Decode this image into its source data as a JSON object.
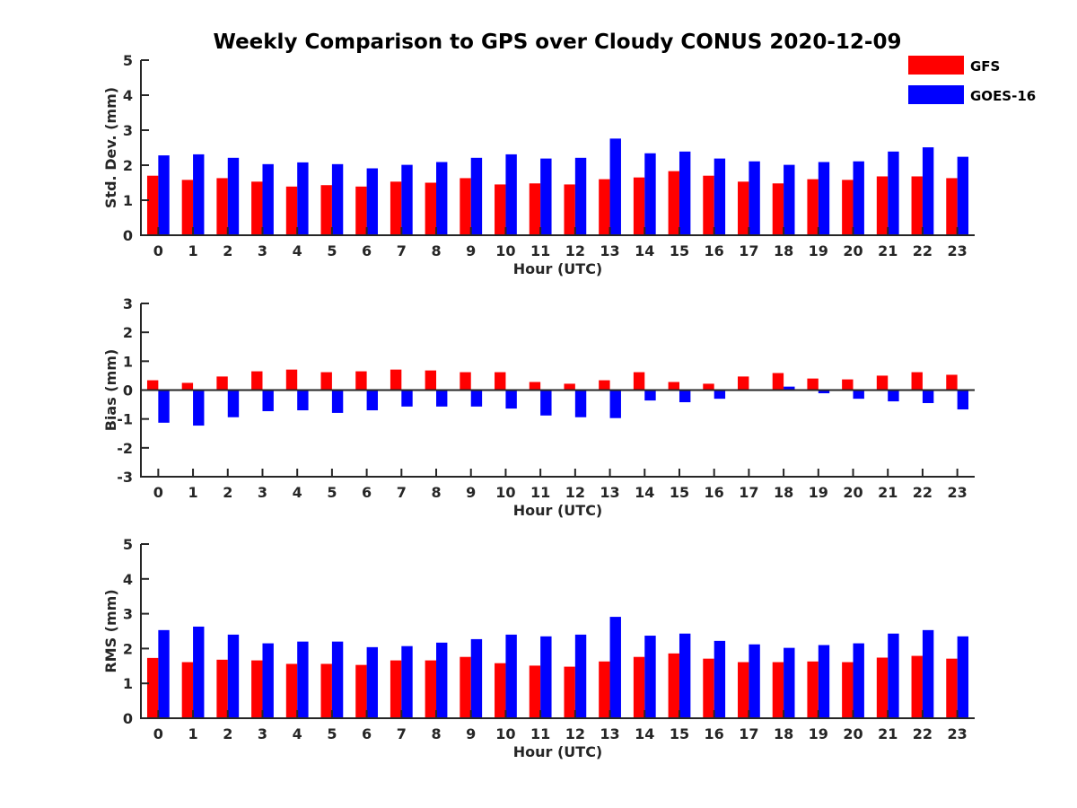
{
  "title": "Weekly Comparison to GPS over Cloudy CONUS 2020-12-09",
  "legend": {
    "placement": "top-right",
    "items": [
      {
        "name": "GFS",
        "color": "#ff0000"
      },
      {
        "name": "GOES-16",
        "color": "#0000ff"
      }
    ]
  },
  "chart_data": [
    {
      "type": "bar",
      "categories": [
        "0",
        "1",
        "2",
        "3",
        "4",
        "5",
        "6",
        "7",
        "8",
        "9",
        "10",
        "11",
        "12",
        "13",
        "14",
        "15",
        "16",
        "17",
        "18",
        "19",
        "20",
        "21",
        "22",
        "23"
      ],
      "series": [
        {
          "name": "GFS",
          "color": "#ff0000",
          "values": [
            1.7,
            1.58,
            1.63,
            1.53,
            1.39,
            1.43,
            1.39,
            1.53,
            1.5,
            1.63,
            1.45,
            1.48,
            1.45,
            1.6,
            1.65,
            1.83,
            1.7,
            1.53,
            1.48,
            1.6,
            1.58,
            1.68,
            1.68,
            1.63
          ]
        },
        {
          "name": "GOES-16",
          "color": "#0000ff",
          "values": [
            2.28,
            2.31,
            2.21,
            2.03,
            2.08,
            2.03,
            1.91,
            2.01,
            2.09,
            2.21,
            2.31,
            2.19,
            2.21,
            2.76,
            2.34,
            2.39,
            2.19,
            2.11,
            2.01,
            2.09,
            2.11,
            2.39,
            2.51,
            2.24
          ]
        }
      ],
      "xlabel": "Hour (UTC)",
      "ylabel": "Std. Dev. (mm)",
      "ylim": [
        0,
        5
      ],
      "yticks": [
        "0",
        "1",
        "2",
        "3",
        "4",
        "5"
      ],
      "grid": false
    },
    {
      "type": "bar",
      "categories": [
        "0",
        "1",
        "2",
        "3",
        "4",
        "5",
        "6",
        "7",
        "8",
        "9",
        "10",
        "11",
        "12",
        "13",
        "14",
        "15",
        "16",
        "17",
        "18",
        "19",
        "20",
        "21",
        "22",
        "23"
      ],
      "series": [
        {
          "name": "GFS",
          "color": "#ff0000",
          "values": [
            0.34,
            0.25,
            0.47,
            0.65,
            0.71,
            0.62,
            0.65,
            0.71,
            0.68,
            0.62,
            0.62,
            0.28,
            0.22,
            0.34,
            0.62,
            0.28,
            0.22,
            0.47,
            0.59,
            0.4,
            0.37,
            0.5,
            0.62,
            0.53
          ]
        },
        {
          "name": "GOES-16",
          "color": "#0000ff",
          "values": [
            -1.13,
            -1.23,
            -0.94,
            -0.73,
            -0.7,
            -0.79,
            -0.7,
            -0.57,
            -0.57,
            -0.57,
            -0.64,
            -0.88,
            -0.94,
            -0.97,
            -0.36,
            -0.42,
            -0.3,
            -0.02,
            0.12,
            -0.11,
            -0.3,
            -0.39,
            -0.45,
            -0.67
          ]
        }
      ],
      "xlabel": "Hour (UTC)",
      "ylabel": "Bias (mm)",
      "ylim": [
        -3,
        3
      ],
      "yticks": [
        "-3",
        "-2",
        "-1",
        "0",
        "1",
        "2",
        "3"
      ],
      "grid": false
    },
    {
      "type": "bar",
      "categories": [
        "0",
        "1",
        "2",
        "3",
        "4",
        "5",
        "6",
        "7",
        "8",
        "9",
        "10",
        "11",
        "12",
        "13",
        "14",
        "15",
        "16",
        "17",
        "18",
        "19",
        "20",
        "21",
        "22",
        "23"
      ],
      "series": [
        {
          "name": "GFS",
          "color": "#ff0000",
          "values": [
            1.73,
            1.61,
            1.68,
            1.66,
            1.56,
            1.56,
            1.53,
            1.66,
            1.66,
            1.76,
            1.58,
            1.51,
            1.48,
            1.63,
            1.76,
            1.86,
            1.71,
            1.61,
            1.61,
            1.63,
            1.61,
            1.74,
            1.79,
            1.71
          ]
        },
        {
          "name": "GOES-16",
          "color": "#0000ff",
          "values": [
            2.53,
            2.63,
            2.4,
            2.15,
            2.2,
            2.2,
            2.04,
            2.07,
            2.17,
            2.27,
            2.4,
            2.35,
            2.4,
            2.91,
            2.37,
            2.43,
            2.22,
            2.12,
            2.02,
            2.1,
            2.15,
            2.43,
            2.53,
            2.35
          ]
        }
      ],
      "xlabel": "Hour (UTC)",
      "ylabel": "RMS (mm)",
      "ylim": [
        0,
        5
      ],
      "yticks": [
        "0",
        "1",
        "2",
        "3",
        "4",
        "5"
      ],
      "grid": false
    }
  ]
}
